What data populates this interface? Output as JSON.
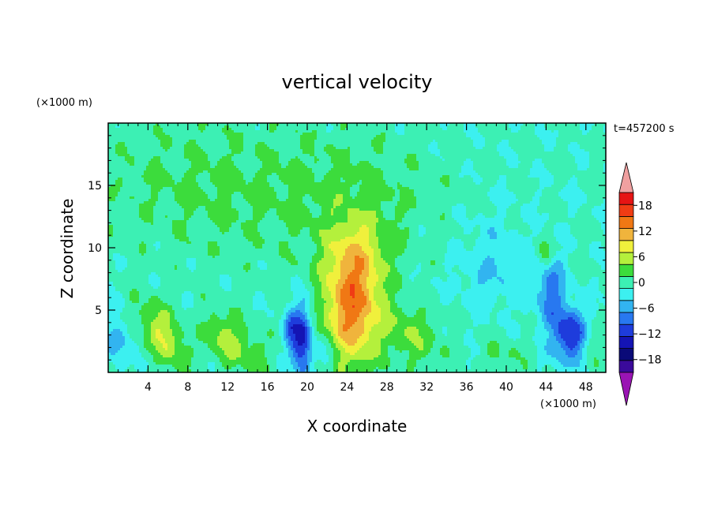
{
  "chart_data": {
    "type": "heatmap",
    "title": "vertical velocity",
    "xlabel": "X coordinate",
    "ylabel": "Z coordinate",
    "x_unit": "(×1000 m)",
    "y_unit": "(×1000 m)",
    "time_label": "t=457200 s",
    "xlim": [
      0,
      50
    ],
    "ylim": [
      0,
      20
    ],
    "x_ticks": [
      4,
      8,
      12,
      16,
      20,
      24,
      28,
      32,
      36,
      40,
      44,
      48
    ],
    "y_ticks": [
      5,
      10,
      15
    ],
    "colorbar": {
      "levels": [
        -21,
        -18,
        -15,
        -12,
        -9,
        -6,
        -3,
        0,
        3,
        6,
        9,
        12,
        15,
        18,
        21
      ],
      "tick_labels": [
        -18,
        -12,
        -6,
        0,
        6,
        12,
        18
      ],
      "colors": [
        "#3a0a9a",
        "#0a0a78",
        "#1414b4",
        "#1e3cdc",
        "#2878f0",
        "#32b4f0",
        "#3cf0f0",
        "#3cf0b4",
        "#3cdc3c",
        "#b4f03c",
        "#f0f03c",
        "#f0b43c",
        "#f07814",
        "#f03c14",
        "#e61414"
      ],
      "extend_low_color": "#9a14b4",
      "extend_high_color": "#f0a0a0"
    },
    "background_value": 0.5,
    "features": [
      {
        "x": 24.5,
        "z": 5.0,
        "sx": 2.0,
        "sz": 3.2,
        "value": 15.5,
        "tilt": 0
      },
      {
        "x": 25.0,
        "z": 9.5,
        "sx": 2.2,
        "sz": 2.2,
        "value": 5.5,
        "tilt": 0
      },
      {
        "x": 5.5,
        "z": 3.0,
        "sx": 1.4,
        "sz": 1.8,
        "value": 8.5,
        "tilt": -0.5
      },
      {
        "x": 12.0,
        "z": 2.6,
        "sx": 1.5,
        "sz": 1.6,
        "value": 7.0,
        "tilt": -0.3
      },
      {
        "x": 30.5,
        "z": 3.0,
        "sx": 2.0,
        "sz": 1.8,
        "value": 5.0,
        "tilt": -0.4
      },
      {
        "x": 19.5,
        "z": 2.6,
        "sx": 0.7,
        "sz": 2.0,
        "value": -14.5,
        "tilt": 0
      },
      {
        "x": 18.3,
        "z": 3.4,
        "sx": 0.5,
        "sz": 1.0,
        "value": -8.0,
        "tilt": 0
      },
      {
        "x": 46.5,
        "z": 3.0,
        "sx": 1.2,
        "sz": 1.5,
        "value": -13.0,
        "tilt": 0
      },
      {
        "x": 44.5,
        "z": 6.5,
        "sx": 1.0,
        "sz": 2.2,
        "value": -7.5,
        "tilt": 0
      },
      {
        "x": 38.5,
        "z": 8.5,
        "sx": 2.5,
        "sz": 2.5,
        "value": -3.5,
        "tilt": 0
      },
      {
        "x": 22.0,
        "z": 1.5,
        "sx": 0.8,
        "sz": 1.0,
        "value": -4.0,
        "tilt": 0
      },
      {
        "x": 1.0,
        "z": 2.5,
        "sx": 1.0,
        "sz": 1.5,
        "value": -5.0,
        "tilt": 0
      },
      {
        "x": 48.5,
        "z": 2.5,
        "sx": 0.8,
        "sz": 1.2,
        "value": 4.0,
        "tilt": 0
      },
      {
        "x": 44.0,
        "z": 9.5,
        "sx": 0.6,
        "sz": 0.8,
        "value": 6.0,
        "tilt": 0
      },
      {
        "x": 15.0,
        "z": 1.5,
        "sx": 0.8,
        "sz": 1.0,
        "value": 3.5,
        "tilt": 0
      },
      {
        "x": 39.5,
        "z": 1.3,
        "sx": 1.5,
        "sz": 1.0,
        "value": 3.0,
        "tilt": 0
      },
      {
        "x": 10.0,
        "z": 15.0,
        "sx": 8.0,
        "sz": 4.0,
        "value": 3.0,
        "tilt": 0
      },
      {
        "x": 25.0,
        "z": 14.0,
        "sx": 6.0,
        "sz": 4.0,
        "value": 2.8,
        "tilt": 0
      }
    ]
  }
}
